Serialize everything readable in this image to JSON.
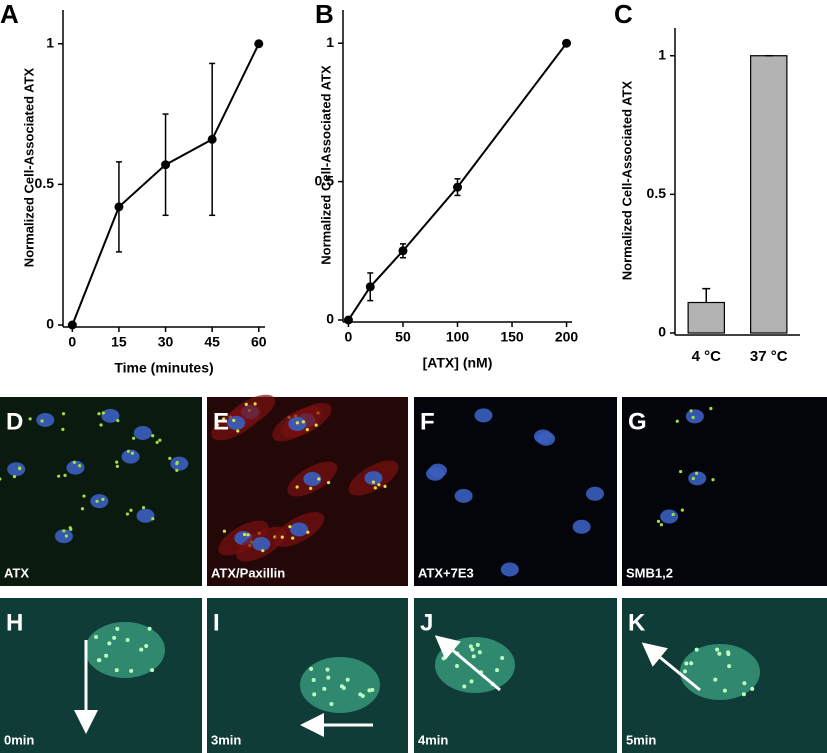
{
  "chart_data": [
    {
      "type": "line",
      "panel": "A",
      "x": [
        0,
        15,
        30,
        45,
        60
      ],
      "values": [
        0,
        0.42,
        0.57,
        0.66,
        1
      ],
      "errors": [
        0,
        0.16,
        0.18,
        0.27,
        0
      ],
      "xlabel": "Time (minutes)",
      "ylabel": "Normalized Cell-Associated ATX",
      "color": "#000000",
      "xlim": [
        -3,
        62
      ],
      "xticks": [
        0,
        15,
        30,
        45,
        60
      ],
      "ylim": [
        0,
        1.12
      ],
      "yticks": [
        0,
        0.5,
        1
      ]
    },
    {
      "type": "line",
      "panel": "B",
      "x": [
        0,
        20,
        50,
        100,
        200
      ],
      "values": [
        0,
        0.12,
        0.25,
        0.48,
        1
      ],
      "errors": [
        0,
        0.05,
        0.025,
        0.03,
        0
      ],
      "xlabel": "[ATX] (nM)",
      "ylabel": "Normalized Cell-Associated ATX",
      "color": "#000000",
      "xlim": [
        -5,
        205
      ],
      "xticks": [
        0,
        50,
        100,
        150,
        200
      ],
      "ylim": [
        0,
        1.12
      ],
      "yticks": [
        0,
        0.5,
        1
      ]
    },
    {
      "type": "bar",
      "panel": "C",
      "categories": [
        "4 °C",
        "37 °C"
      ],
      "values": [
        0.11,
        1
      ],
      "errors": [
        0.05,
        0
      ],
      "ylabel": "Normalized Cell-Associated ATX",
      "color": "#b3b3b3",
      "ylim": [
        0,
        1.1
      ],
      "yticks": [
        0,
        0.5,
        1
      ]
    }
  ],
  "panels": [
    {
      "letter": "D",
      "caption": "ATX"
    },
    {
      "letter": "E",
      "caption": "ATX/Paxillin"
    },
    {
      "letter": "F",
      "caption": "ATX+7E3"
    },
    {
      "letter": "G",
      "caption": "SMB1,2"
    },
    {
      "letter": "H",
      "caption": "0min"
    },
    {
      "letter": "I",
      "caption": "3min"
    },
    {
      "letter": "J",
      "caption": "4min"
    },
    {
      "letter": "K",
      "caption": "5min"
    }
  ]
}
